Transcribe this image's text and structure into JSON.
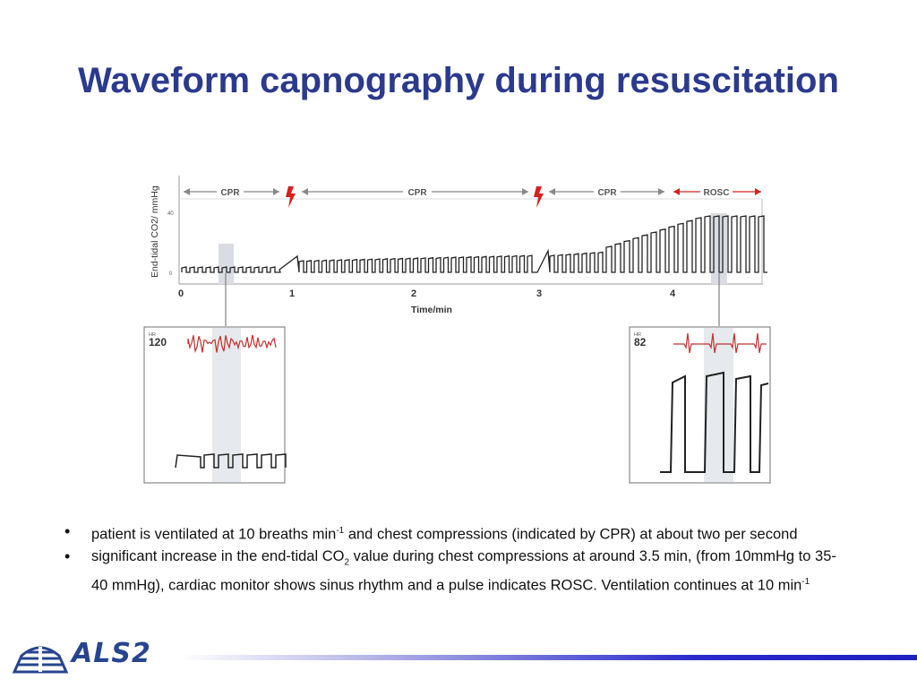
{
  "slide": {
    "title": "Waveform capnography during resuscitation"
  },
  "figure": {
    "y_axis_label": "End-tidal CO2/ mmHg",
    "y_ticks": [
      "40",
      "0"
    ],
    "x_ticks": [
      "0",
      "1",
      "2",
      "3",
      "4"
    ],
    "x_axis_label": "Time/min",
    "phases": [
      {
        "label": "CPR"
      },
      {
        "label": "CPR"
      },
      {
        "label": "CPR"
      },
      {
        "label": "ROSC"
      }
    ],
    "shock_icon": "lightning-bolt-icon",
    "colors": {
      "arrow": "#888888",
      "rosc": "#d62020",
      "ecg": "#c0302f",
      "trace": "#222222",
      "highlight": "#d9dde3"
    },
    "inset_left": {
      "hr_label": "HR",
      "hr_value": "120"
    },
    "inset_right": {
      "hr_label": "HR",
      "hr_value": "82"
    }
  },
  "bullets": [
    {
      "p1": "patient is ventilated at 10 breaths min",
      "sup1": "-1",
      "p2": " and chest compressions (indicated by CPR) at about two per second"
    },
    {
      "p1": "significant increase in the end-tidal CO",
      "sub1": "2",
      "p2": " value during chest compressions at around 3.5 min, (from 10mmHg to 35-40 mmHg), cardiac monitor shows sinus rhythm and a pulse indicates ROSC. Ventilation continues at 10 min",
      "sup2": "-1"
    }
  ],
  "footer": {
    "logo_text": "ALS2"
  }
}
